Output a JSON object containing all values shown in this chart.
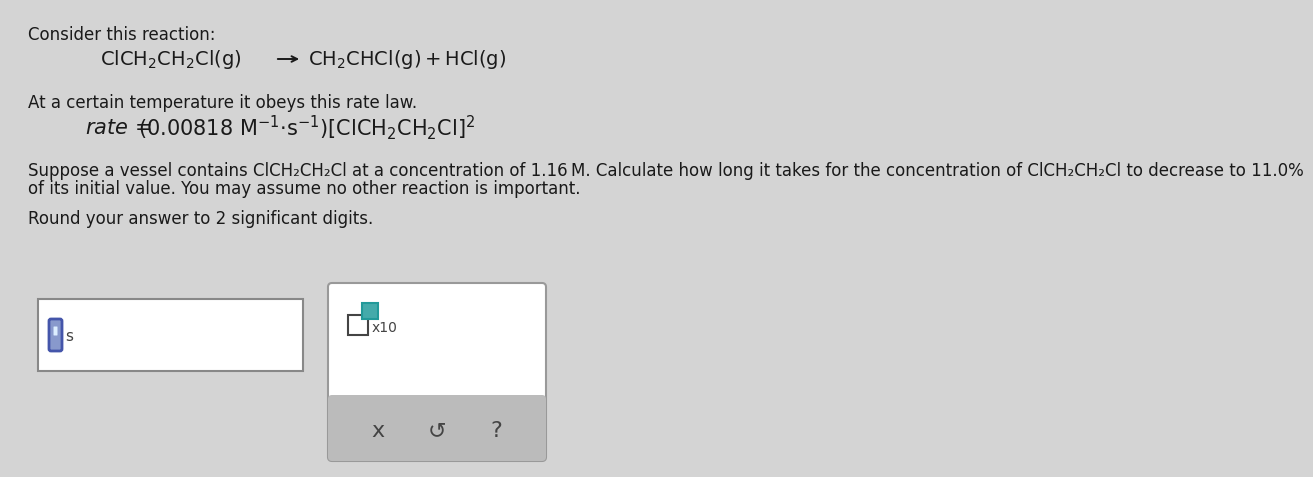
{
  "bg_color": "#d4d4d4",
  "white": "#ffffff",
  "text_color": "#1a1a1a",
  "dark_gray": "#444444",
  "med_gray": "#888888",
  "btn_gray": "#bbbbbb",
  "icon_blue_edge": "#4455aa",
  "icon_blue_fill": "#8899cc",
  "teal_fill": "#44aaaa",
  "teal_edge": "#229999",
  "box2_edge": "#999999",
  "title": "Consider this reaction:",
  "rate_intro": "At a certain temperature it obeys this rate law.",
  "prob_line1": "Suppose a vessel contains ClCH₂CH₂Cl at a concentration of 1.16 M. Calculate how long it takes for the concentration of ClCH₂CH₂Cl to decrease to 11.0%",
  "prob_line2": "of its initial value. You may assume no other reaction is important.",
  "round_line": "Round your answer to 2 significant digits.",
  "title_fs": 12,
  "body_fs": 12,
  "eq_fs": 14,
  "rate_fs": 14,
  "small_fs": 10,
  "ans_label": "s",
  "x10_label": "x10",
  "btn_x": "x",
  "btn_undo": "↺",
  "btn_help": "?"
}
